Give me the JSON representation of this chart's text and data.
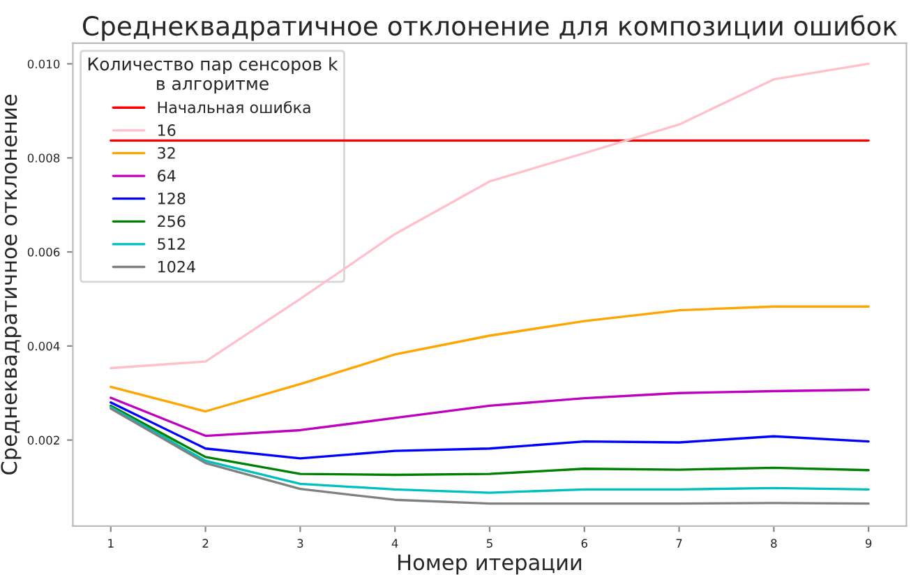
{
  "chart_data": {
    "type": "line",
    "title": "Среднеквадратичное отклонение для композиции ошибок",
    "xlabel": "Номер итерации",
    "ylabel": "Среднеквадратичное отклонение",
    "legend_title": "Количество пар сенсоров k\nв алгоритме",
    "x": [
      1,
      2,
      3,
      4,
      5,
      6,
      7,
      8,
      9
    ],
    "series": [
      {
        "name": "Начальная ошибка",
        "color": "#ff0000",
        "values": [
          0.00837,
          0.00837,
          0.00837,
          0.00837,
          0.00837,
          0.00837,
          0.00837,
          0.00837,
          0.00837
        ]
      },
      {
        "name": "16",
        "color": "#ffc0cb",
        "values": [
          0.00353,
          0.00367,
          0.005,
          0.00638,
          0.0075,
          0.0081,
          0.00871,
          0.00967,
          0.01
        ]
      },
      {
        "name": "32",
        "color": "#ffa500",
        "values": [
          0.00313,
          0.00261,
          0.00319,
          0.00382,
          0.00422,
          0.00453,
          0.00476,
          0.00484,
          0.00484
        ]
      },
      {
        "name": "64",
        "color": "#bf00bf",
        "values": [
          0.0029,
          0.00209,
          0.00221,
          0.00247,
          0.00273,
          0.00289,
          0.003,
          0.00304,
          0.00307
        ]
      },
      {
        "name": "128",
        "color": "#0000ff",
        "values": [
          0.0028,
          0.00182,
          0.00161,
          0.00177,
          0.00182,
          0.00197,
          0.00195,
          0.00208,
          0.00197
        ]
      },
      {
        "name": "256",
        "color": "#008000",
        "values": [
          0.00273,
          0.00164,
          0.00128,
          0.00126,
          0.00128,
          0.00139,
          0.00137,
          0.00141,
          0.00136
        ]
      },
      {
        "name": "512",
        "color": "#00bfbf",
        "values": [
          0.0027,
          0.00156,
          0.00107,
          0.00095,
          0.00088,
          0.00095,
          0.00095,
          0.00098,
          0.00095
        ]
      },
      {
        "name": "1024",
        "color": "#808080",
        "values": [
          0.00267,
          0.00151,
          0.00096,
          0.00073,
          0.00065,
          0.00065,
          0.00065,
          0.00066,
          0.00065
        ]
      }
    ],
    "xlim": [
      0.6,
      9.4
    ],
    "ylim": [
      0.00017,
      0.01044
    ],
    "xticks": [
      1,
      2,
      3,
      4,
      5,
      6,
      7,
      8,
      9
    ],
    "yticks": [
      {
        "value": 0.002,
        "label": "0.002"
      },
      {
        "value": 0.004,
        "label": "0.004"
      },
      {
        "value": 0.006,
        "label": "0.006"
      },
      {
        "value": 0.008,
        "label": "0.008"
      },
      {
        "value": 0.01,
        "label": "0.010"
      }
    ],
    "grid": false,
    "legend": "top left",
    "marker": "none",
    "line_style": "solid"
  }
}
